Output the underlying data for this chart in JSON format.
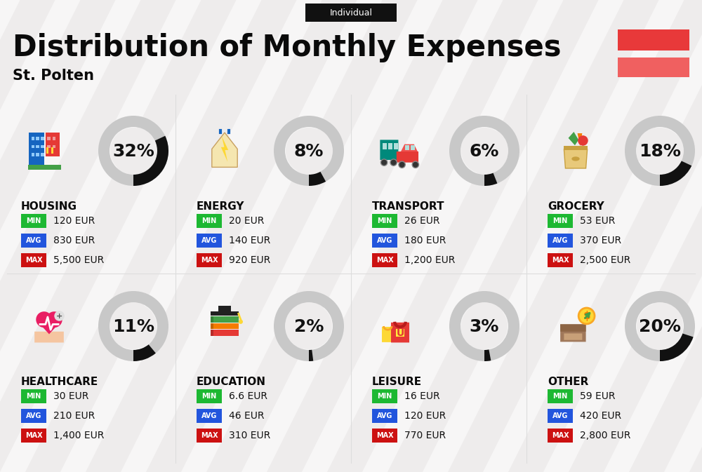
{
  "title": "Distribution of Monthly Expenses",
  "subtitle": "St. Polten",
  "tag": "Individual",
  "bg_color": "#eeecec",
  "stripe_color": "#ffffff",
  "flag_colors": [
    "#e8393a",
    "#f06060"
  ],
  "categories": [
    {
      "name": "HOUSING",
      "pct": 32,
      "min": "120 EUR",
      "avg": "830 EUR",
      "max": "5,500 EUR",
      "row": 0,
      "col": 0
    },
    {
      "name": "ENERGY",
      "pct": 8,
      "min": "20 EUR",
      "avg": "140 EUR",
      "max": "920 EUR",
      "row": 0,
      "col": 1
    },
    {
      "name": "TRANSPORT",
      "pct": 6,
      "min": "26 EUR",
      "avg": "180 EUR",
      "max": "1,200 EUR",
      "row": 0,
      "col": 2
    },
    {
      "name": "GROCERY",
      "pct": 18,
      "min": "53 EUR",
      "avg": "370 EUR",
      "max": "2,500 EUR",
      "row": 0,
      "col": 3
    },
    {
      "name": "HEALTHCARE",
      "pct": 11,
      "min": "30 EUR",
      "avg": "210 EUR",
      "max": "1,400 EUR",
      "row": 1,
      "col": 0
    },
    {
      "name": "EDUCATION",
      "pct": 2,
      "min": "6.6 EUR",
      "avg": "46 EUR",
      "max": "310 EUR",
      "row": 1,
      "col": 1
    },
    {
      "name": "LEISURE",
      "pct": 3,
      "min": "16 EUR",
      "avg": "120 EUR",
      "max": "770 EUR",
      "row": 1,
      "col": 2
    },
    {
      "name": "OTHER",
      "pct": 20,
      "min": "59 EUR",
      "avg": "420 EUR",
      "max": "2,800 EUR",
      "row": 1,
      "col": 3
    }
  ],
  "min_color": "#1db832",
  "avg_color": "#2255dd",
  "max_color": "#cc1111",
  "donut_bg_color": "#c8c8c8",
  "donut_fill_color": "#111111",
  "pct_fontsize": 18,
  "cat_fontsize": 11,
  "val_fontsize": 10,
  "label_fontsize": 7
}
